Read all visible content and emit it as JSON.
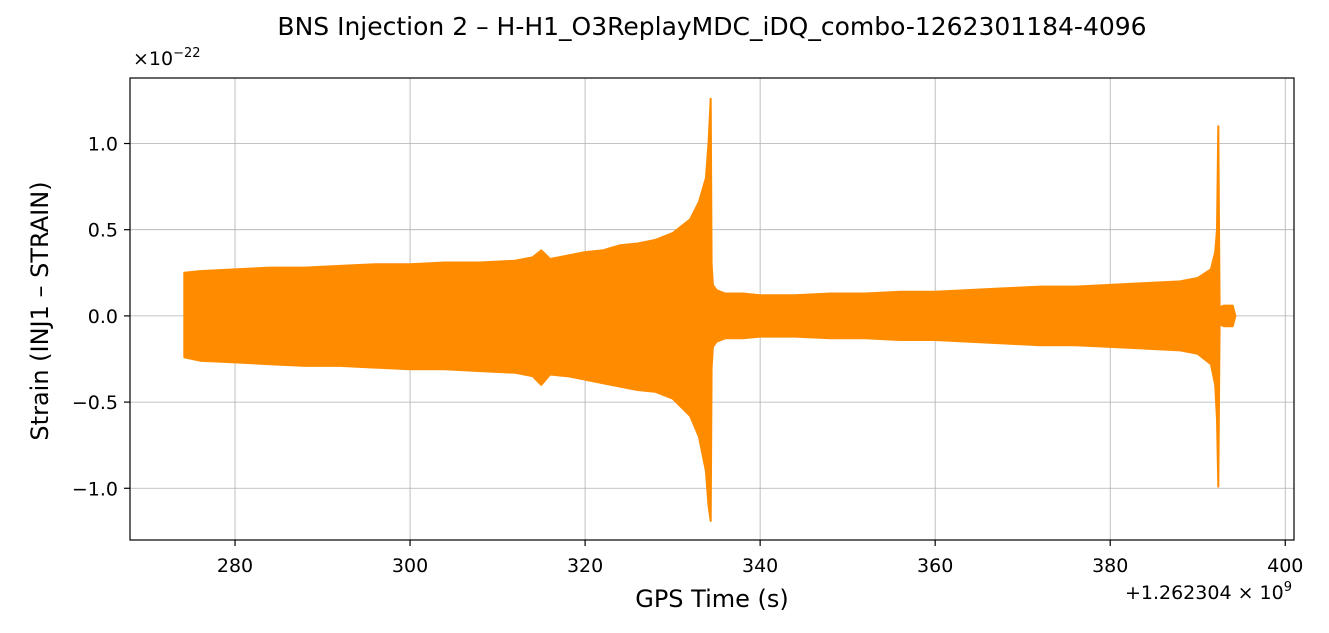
{
  "chart_data": {
    "type": "line",
    "title": "BNS Injection 2 – H-H1_O3ReplayMDC_iDQ_combo-1262301184-4096",
    "xlabel": "GPS Time (s)",
    "ylabel": "Strain (INJ1 – STRAIN)",
    "x_offset_text": {
      "base": "+1.262304 × 10",
      "exponent": "9"
    },
    "y_scale_text": {
      "base": "×10",
      "exponent": "−22"
    },
    "xlim": [
      268,
      401
    ],
    "ylim": [
      -1.3,
      1.38
    ],
    "x_ticks": [
      280,
      300,
      320,
      340,
      360,
      380,
      400
    ],
    "x_tick_labels": [
      "280",
      "300",
      "320",
      "340",
      "360",
      "380",
      "400"
    ],
    "y_ticks": [
      -1.0,
      -0.5,
      0.0,
      0.5,
      1.0
    ],
    "y_tick_labels": [
      "−1.0",
      "−0.5",
      "0.0",
      "0.5",
      "1.0"
    ],
    "grid": true,
    "color": "#ff8c00",
    "series": [
      {
        "x": [
          274.2,
          276,
          280,
          284,
          288,
          292,
          296,
          300,
          304,
          308,
          312,
          314,
          315,
          316,
          318,
          320,
          322,
          324,
          326,
          328,
          330,
          332,
          333,
          333.8,
          334.1,
          334.35,
          334.45,
          334.6,
          335,
          336,
          338,
          340,
          344,
          348,
          352,
          356,
          360,
          364,
          368,
          372,
          376,
          380,
          384,
          388,
          390,
          391.5,
          392.0,
          392.2,
          392.35,
          392.5,
          393,
          393.5,
          394,
          394.3
        ],
        "y_upper": [
          0.25,
          0.26,
          0.27,
          0.28,
          0.28,
          0.29,
          0.3,
          0.3,
          0.31,
          0.31,
          0.32,
          0.34,
          0.38,
          0.33,
          0.35,
          0.37,
          0.38,
          0.41,
          0.42,
          0.44,
          0.48,
          0.56,
          0.66,
          0.8,
          1.0,
          1.26,
          0.3,
          0.18,
          0.15,
          0.13,
          0.13,
          0.12,
          0.12,
          0.13,
          0.13,
          0.14,
          0.14,
          0.15,
          0.16,
          0.17,
          0.17,
          0.18,
          0.19,
          0.2,
          0.22,
          0.27,
          0.37,
          0.5,
          1.1,
          0.05,
          0.06,
          0.06,
          0.06,
          0.0
        ],
        "y_lower": [
          -0.24,
          -0.26,
          -0.27,
          -0.28,
          -0.29,
          -0.29,
          -0.3,
          -0.31,
          -0.31,
          -0.32,
          -0.33,
          -0.35,
          -0.4,
          -0.34,
          -0.35,
          -0.37,
          -0.39,
          -0.41,
          -0.43,
          -0.44,
          -0.48,
          -0.58,
          -0.7,
          -0.9,
          -1.1,
          -1.19,
          -0.3,
          -0.18,
          -0.15,
          -0.13,
          -0.13,
          -0.12,
          -0.12,
          -0.13,
          -0.13,
          -0.14,
          -0.14,
          -0.15,
          -0.16,
          -0.17,
          -0.17,
          -0.18,
          -0.19,
          -0.2,
          -0.22,
          -0.28,
          -0.4,
          -0.6,
          -0.99,
          -0.05,
          -0.06,
          -0.06,
          -0.06,
          0.0
        ]
      }
    ]
  }
}
